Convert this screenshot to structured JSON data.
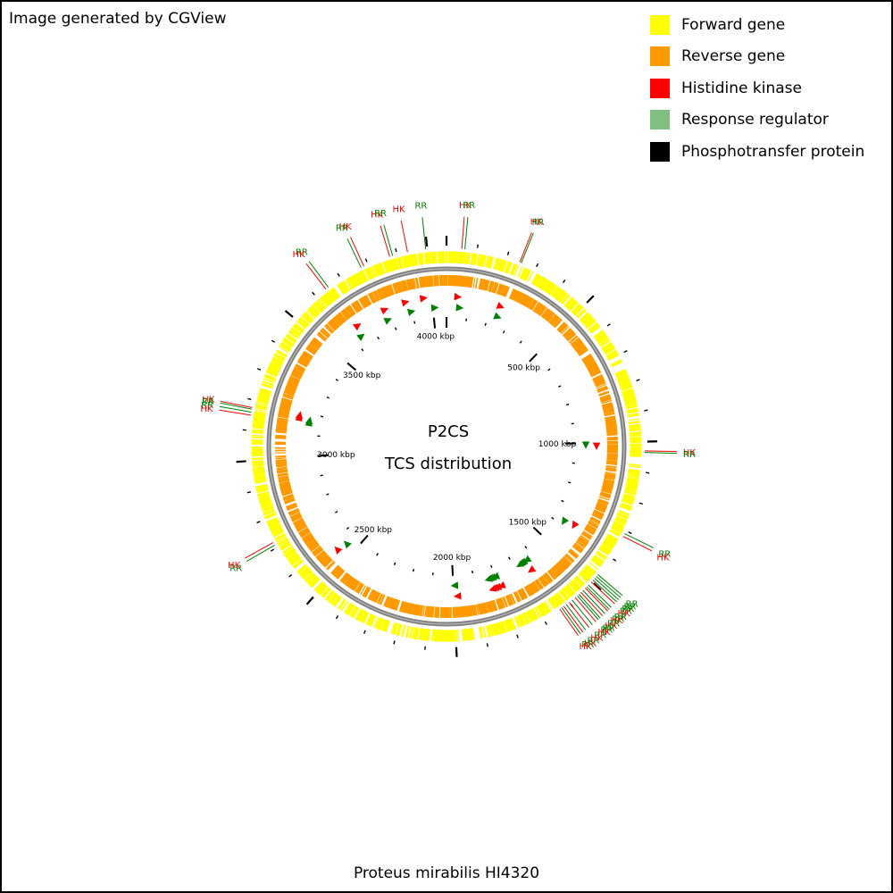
{
  "credit": "Image generated by CGView",
  "legend": [
    {
      "label": "Forward gene",
      "color": "#ffff00"
    },
    {
      "label": "Reverse gene",
      "color": "#ff9900"
    },
    {
      "label": "Histidine kinase",
      "color": "#ff0000"
    },
    {
      "label": "Response regulator",
      "color": "#7fbf7f"
    },
    {
      "label": "Phosphotransfer protein",
      "color": "#000000"
    }
  ],
  "map": {
    "title_line1": "P2CS",
    "title_line2": "TCS distribution",
    "organism": "Proteus mirabilis HI4320",
    "genome_length_kbp": 4063,
    "tick_labels": [
      {
        "kbp": 500,
        "text": "500 kbp"
      },
      {
        "kbp": 1000,
        "text": "1000 kbp"
      },
      {
        "kbp": 1500,
        "text": "1500 kbp"
      },
      {
        "kbp": 2000,
        "text": "2000 kbp"
      },
      {
        "kbp": 2500,
        "text": "2500 kbp"
      },
      {
        "kbp": 3000,
        "text": "3000 kbp"
      },
      {
        "kbp": 3500,
        "text": "3500 kbp"
      },
      {
        "kbp": 4000,
        "text": "4000 kbp"
      }
    ],
    "colors": {
      "forward": "#ffff00",
      "reverse": "#ff9900",
      "hk": "#ff0000",
      "rr": "#008000",
      "backbone": "#7f7f7f",
      "tick": "#000000"
    },
    "features": [
      {
        "type": "HK",
        "kbp": 3790
      },
      {
        "type": "RR",
        "kbp": 3785
      },
      {
        "type": "HK",
        "kbp": 3885
      },
      {
        "type": "RR",
        "kbp": 3900
      },
      {
        "type": "HK",
        "kbp": 3965
      },
      {
        "type": "RR",
        "kbp": 4010
      },
      {
        "type": "HK",
        "kbp": 50
      },
      {
        "type": "RR",
        "kbp": 62
      },
      {
        "type": "HK",
        "kbp": 240
      },
      {
        "type": "RR",
        "kbp": 245
      },
      {
        "type": "HK",
        "kbp": 3655
      },
      {
        "type": "RR",
        "kbp": 3640
      },
      {
        "type": "HK",
        "kbp": 3175
      },
      {
        "type": "RR",
        "kbp": 3160
      },
      {
        "type": "HK",
        "kbp": 3185
      },
      {
        "type": "RR",
        "kbp": 3170
      },
      {
        "type": "HK",
        "kbp": 1015
      },
      {
        "type": "RR",
        "kbp": 1010
      },
      {
        "type": "HK",
        "kbp": 1375
      },
      {
        "type": "RR",
        "kbp": 1385
      },
      {
        "type": "HK",
        "kbp": 1645
      },
      {
        "type": "RR",
        "kbp": 1635
      },
      {
        "type": "RR",
        "kbp": 1655
      },
      {
        "type": "RR",
        "kbp": 1665
      },
      {
        "type": "RR",
        "kbp": 1675
      },
      {
        "type": "HK",
        "kbp": 1790
      },
      {
        "type": "RR",
        "kbp": 1800
      },
      {
        "type": "HK",
        "kbp": 1808
      },
      {
        "type": "RR",
        "kbp": 1815
      },
      {
        "type": "HK",
        "kbp": 1820
      },
      {
        "type": "RR",
        "kbp": 1825
      },
      {
        "type": "HK",
        "kbp": 1830
      },
      {
        "type": "RR",
        "kbp": 1835
      },
      {
        "type": "HK",
        "kbp": 1985
      },
      {
        "type": "RR",
        "kbp": 1995
      },
      {
        "type": "HK",
        "kbp": 2560
      },
      {
        "type": "RR",
        "kbp": 2550
      }
    ],
    "callouts": [
      {
        "label": "HK",
        "kbp": 3785
      },
      {
        "label": "RR",
        "kbp": 3775
      },
      {
        "label": "HK",
        "kbp": 3875
      },
      {
        "label": "RR",
        "kbp": 3885
      },
      {
        "label": "HK",
        "kbp": 3935
      },
      {
        "label": "RR",
        "kbp": 3995
      },
      {
        "label": "HK",
        "kbp": 50
      },
      {
        "label": "RR",
        "kbp": 60
      },
      {
        "label": "HK",
        "kbp": 245
      },
      {
        "label": "RR",
        "kbp": 250
      },
      {
        "label": "RR",
        "kbp": 3650
      },
      {
        "label": "HK",
        "kbp": 3640
      },
      {
        "label": "HK",
        "kbp": 3175
      },
      {
        "label": "RR",
        "kbp": 3170
      },
      {
        "label": "RR",
        "kbp": 3160
      },
      {
        "label": "HK",
        "kbp": 3150
      },
      {
        "label": "HK",
        "kbp": 1030
      },
      {
        "label": "RR",
        "kbp": 1035
      },
      {
        "label": "RR",
        "kbp": 1310
      },
      {
        "label": "HK",
        "kbp": 1320
      },
      {
        "label": "RR",
        "kbp": 1470
      },
      {
        "label": "RR",
        "kbp": 1478
      },
      {
        "label": "RR",
        "kbp": 1486
      },
      {
        "label": "RR",
        "kbp": 1494
      },
      {
        "label": "HK",
        "kbp": 1502
      },
      {
        "label": "RR",
        "kbp": 1516
      },
      {
        "label": "RR",
        "kbp": 1524
      },
      {
        "label": "HK",
        "kbp": 1530
      },
      {
        "label": "RR",
        "kbp": 1541
      },
      {
        "label": "HK",
        "kbp": 1550
      },
      {
        "label": "RR",
        "kbp": 1559
      },
      {
        "label": "RR",
        "kbp": 1566
      },
      {
        "label": "HK",
        "kbp": 1575
      },
      {
        "label": "RR",
        "kbp": 1588
      },
      {
        "label": "HK",
        "kbp": 1600
      },
      {
        "label": "RR",
        "kbp": 1612
      },
      {
        "label": "HK",
        "kbp": 1622
      },
      {
        "label": "RR",
        "kbp": 1630
      },
      {
        "label": "HK",
        "kbp": 1638
      },
      {
        "label": "RR",
        "kbp": 2710
      },
      {
        "label": "HK",
        "kbp": 2720
      }
    ]
  }
}
